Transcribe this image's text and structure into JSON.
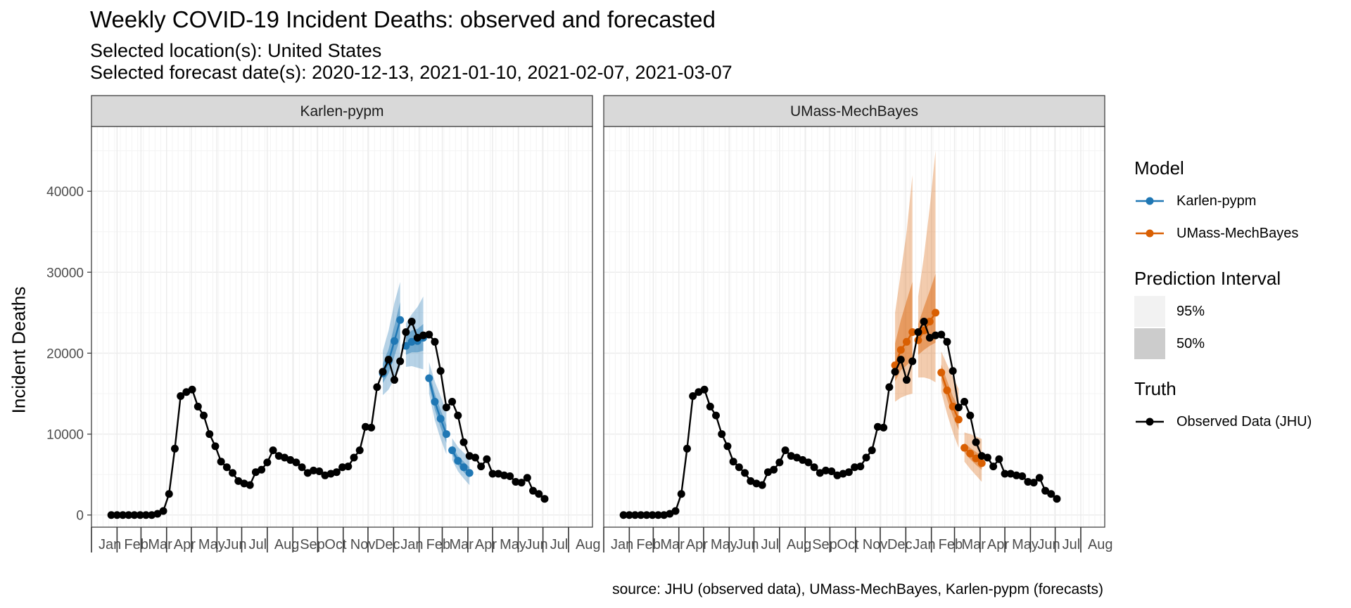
{
  "title": "Weekly COVID-19 Incident Deaths: observed and forecasted",
  "subtitle_location": "Selected location(s): United States",
  "subtitle_dates": "Selected forecast date(s): 2020-12-13, 2021-01-10, 2021-02-07, 2021-03-07",
  "caption": "source: JHU (observed data), UMass-MechBayes, Karlen-pypm (forecasts)",
  "legend": {
    "model_title": "Model",
    "models": [
      {
        "name": "Karlen-pypm",
        "color": "#1f77b4"
      },
      {
        "name": "UMass-MechBayes",
        "color": "#d95f02"
      }
    ],
    "interval_title": "Prediction Interval",
    "intervals": [
      {
        "name": "95%",
        "color": "#f2f2f2"
      },
      {
        "name": "50%",
        "color": "#cccccc"
      }
    ],
    "truth_title": "Truth",
    "truth": {
      "name": "Observed Data (JHU)",
      "color": "#000000"
    }
  },
  "chart_data": {
    "type": "line",
    "facets": [
      "Karlen-pypm",
      "UMass-MechBayes"
    ],
    "ylabel": "Incident Deaths",
    "xlabel": "",
    "ylim": [
      -1500,
      48000
    ],
    "yticks": [
      0,
      10000,
      20000,
      30000,
      40000
    ],
    "xlim": [
      "2020-01-01",
      "2021-08-30"
    ],
    "month_ticks": [
      {
        "label": "Jan",
        "date": "2020-01-01"
      },
      {
        "label": "Feb",
        "date": "2020-02-01"
      },
      {
        "label": "Mar",
        "date": "2020-03-01"
      },
      {
        "label": "Apr",
        "date": "2020-04-01"
      },
      {
        "label": "May",
        "date": "2020-05-01"
      },
      {
        "label": "Jun",
        "date": "2020-06-01"
      },
      {
        "label": "Jul",
        "date": "2020-07-01"
      },
      {
        "label": "Aug",
        "date": "2020-08-01"
      },
      {
        "label": "Sep",
        "date": "2020-09-01"
      },
      {
        "label": "Oct",
        "date": "2020-10-01"
      },
      {
        "label": "Nov",
        "date": "2020-11-01"
      },
      {
        "label": "Dec",
        "date": "2020-12-01"
      },
      {
        "label": "Jan",
        "date": "2021-01-01"
      },
      {
        "label": "Feb",
        "date": "2021-02-01"
      },
      {
        "label": "Mar",
        "date": "2021-03-01"
      },
      {
        "label": "Apr",
        "date": "2021-04-01"
      },
      {
        "label": "May",
        "date": "2021-05-01"
      },
      {
        "label": "Jun",
        "date": "2021-06-01"
      },
      {
        "label": "Jul",
        "date": "2021-07-01"
      },
      {
        "label": "Aug",
        "date": "2021-08-01"
      }
    ],
    "observed": {
      "name": "Observed Data (JHU)",
      "x": [
        "2020-01-25",
        "2020-02-01",
        "2020-02-08",
        "2020-02-15",
        "2020-02-22",
        "2020-02-29",
        "2020-03-07",
        "2020-03-14",
        "2020-03-21",
        "2020-03-28",
        "2020-04-04",
        "2020-04-11",
        "2020-04-18",
        "2020-04-25",
        "2020-05-02",
        "2020-05-09",
        "2020-05-16",
        "2020-05-23",
        "2020-05-30",
        "2020-06-06",
        "2020-06-13",
        "2020-06-20",
        "2020-06-27",
        "2020-07-04",
        "2020-07-11",
        "2020-07-18",
        "2020-07-25",
        "2020-08-01",
        "2020-08-08",
        "2020-08-15",
        "2020-08-22",
        "2020-08-29",
        "2020-09-05",
        "2020-09-12",
        "2020-09-19",
        "2020-09-26",
        "2020-10-03",
        "2020-10-10",
        "2020-10-17",
        "2020-10-24",
        "2020-10-31",
        "2020-11-07",
        "2020-11-14",
        "2020-11-21",
        "2020-11-28",
        "2020-12-05",
        "2020-12-12",
        "2020-12-19",
        "2020-12-26",
        "2021-01-02",
        "2021-01-09",
        "2021-01-16",
        "2021-01-23",
        "2021-01-30",
        "2021-02-06",
        "2021-02-13",
        "2021-02-20",
        "2021-02-27",
        "2021-03-06",
        "2021-03-13",
        "2021-03-20",
        "2021-03-27",
        "2021-04-03",
        "2021-04-10",
        "2021-04-17",
        "2021-04-24",
        "2021-05-01",
        "2021-05-08",
        "2021-05-15",
        "2021-05-22",
        "2021-05-29",
        "2021-06-05",
        "2021-06-12",
        "2021-06-19",
        "2021-06-26",
        "2021-07-03"
      ],
      "y": [
        0,
        0,
        0,
        0,
        0,
        0,
        0,
        0,
        150,
        500,
        2600,
        8200,
        14700,
        15200,
        15500,
        13400,
        12300,
        10000,
        8500,
        6600,
        5900,
        5200,
        4200,
        3900,
        3700,
        5300,
        5600,
        6500,
        8000,
        7300,
        7100,
        6800,
        6500,
        5900,
        5200,
        5500,
        5400,
        4900,
        5100,
        5300,
        5900,
        6000,
        7100,
        8000,
        10900,
        10800,
        15800,
        17700,
        19200,
        16700,
        19000,
        22600,
        23900,
        21900,
        22200,
        22300,
        21400,
        17800,
        13300,
        14000,
        12300,
        9000,
        7300,
        7100,
        6000,
        6900,
        5100,
        5100,
        4900,
        4800,
        4100,
        4000,
        4600,
        3000,
        2600,
        2000
      ]
    },
    "forecasts": [
      {
        "model": "Karlen-pypm",
        "color": "#1f77b4",
        "runs": [
          {
            "forecast_date": "2020-12-13",
            "x": [
              "2020-12-19",
              "2020-12-26",
              "2021-01-02",
              "2021-01-09"
            ],
            "median": [
              17500,
              19000,
              21500,
              24100
            ],
            "q25": [
              16300,
              17500,
              19600,
              21900
            ],
            "q75": [
              18700,
              20500,
              23400,
              26300
            ],
            "q025": [
              14800,
              15500,
              16800,
              18200
            ],
            "q975": [
              20300,
              22800,
              26200,
              28800
            ]
          },
          {
            "forecast_date": "2021-01-10",
            "x": [
              "2021-01-16",
              "2021-01-23",
              "2021-01-30",
              "2021-02-06"
            ],
            "median": [
              20900,
              21400,
              21500,
              21900
            ],
            "q25": [
              19800,
              20100,
              20100,
              20300
            ],
            "q75": [
              22100,
              22800,
              23000,
              23600
            ],
            "q025": [
              18300,
              18400,
              18200,
              18000
            ],
            "q975": [
              23700,
              24800,
              25700,
              27000
            ]
          },
          {
            "forecast_date": "2021-02-07",
            "x": [
              "2021-02-13",
              "2021-02-20",
              "2021-02-27",
              "2021-03-06"
            ],
            "median": [
              16900,
              14000,
              11900,
              10000
            ],
            "q25": [
              16100,
              13000,
              10800,
              8900
            ],
            "q75": [
              17700,
              15000,
              13000,
              11100
            ],
            "q025": [
              15000,
              11700,
              9400,
              7500
            ],
            "q975": [
              18900,
              16500,
              14700,
              12800
            ]
          },
          {
            "forecast_date": "2021-03-07",
            "x": [
              "2021-03-13",
              "2021-03-20",
              "2021-03-27",
              "2021-04-03"
            ],
            "median": [
              8000,
              6700,
              5900,
              5200
            ],
            "q25": [
              7500,
              6200,
              5300,
              4600
            ],
            "q75": [
              8600,
              7300,
              6600,
              5900
            ],
            "q025": [
              6800,
              5400,
              4500,
              3700
            ],
            "q975": [
              9500,
              8400,
              7700,
              7100
            ]
          }
        ]
      },
      {
        "model": "UMass-MechBayes",
        "color": "#d95f02",
        "runs": [
          {
            "forecast_date": "2020-12-13",
            "x": [
              "2020-12-19",
              "2020-12-26",
              "2021-01-02",
              "2021-01-09"
            ],
            "median": [
              18500,
              20400,
              21400,
              22600
            ],
            "q25": [
              16500,
              17900,
              18500,
              19200
            ],
            "q75": [
              21200,
              24100,
              26500,
              28800
            ],
            "q025": [
              14000,
              14500,
              14800,
              15000
            ],
            "q975": [
              25000,
              30000,
              35000,
              42000
            ]
          },
          {
            "forecast_date": "2021-01-10",
            "x": [
              "2021-01-16",
              "2021-01-23",
              "2021-01-30",
              "2021-02-06"
            ],
            "median": [
              21600,
              22800,
              23900,
              25000
            ],
            "q25": [
              19800,
              20400,
              20900,
              21300
            ],
            "q75": [
              23600,
              25700,
              27700,
              29800
            ],
            "q025": [
              17000,
              17000,
              16800,
              16400
            ],
            "q975": [
              27000,
              32000,
              38000,
              45000
            ]
          },
          {
            "forecast_date": "2021-02-07",
            "x": [
              "2021-02-13",
              "2021-02-20",
              "2021-02-27",
              "2021-03-06"
            ],
            "median": [
              17600,
              15400,
              13400,
              11800
            ],
            "q25": [
              16700,
              14300,
              12200,
              10500
            ],
            "q75": [
              18600,
              16600,
              14700,
              13200
            ],
            "q025": [
              15200,
              12500,
              10200,
              8300
            ],
            "q975": [
              20200,
              18600,
              17000,
              15600
            ]
          },
          {
            "forecast_date": "2021-03-07",
            "x": [
              "2021-03-13",
              "2021-03-20",
              "2021-03-27",
              "2021-04-03"
            ],
            "median": [
              8300,
              7600,
              7000,
              6400
            ],
            "q25": [
              7700,
              6900,
              6200,
              5600
            ],
            "q75": [
              8900,
              8300,
              7800,
              7300
            ],
            "q025": [
              6600,
              5700,
              4900,
              4100
            ],
            "q975": [
              10200,
              10000,
              9700,
              9400
            ]
          }
        ]
      }
    ]
  }
}
